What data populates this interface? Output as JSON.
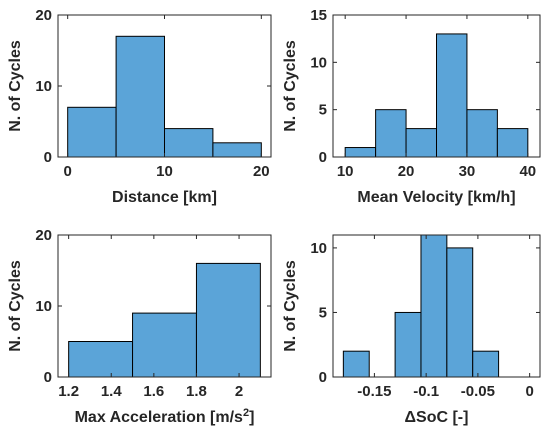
{
  "chart_data": [
    {
      "type": "bar",
      "xlabel": "Distance [km]",
      "ylabel": "N. of Cycles",
      "xlim": [
        -1,
        21
      ],
      "ylim": [
        0,
        20
      ],
      "xticks": [
        0,
        10,
        20
      ],
      "xtick_labels": [
        "0",
        "10",
        "20"
      ],
      "yticks": [
        0,
        10,
        20
      ],
      "ytick_labels": [
        "0",
        "10",
        "20"
      ],
      "bin_edges": [
        0,
        5,
        10,
        15,
        20
      ],
      "values": [
        7,
        17,
        4,
        2
      ],
      "bar_color": "#5ba4d8",
      "grid": false
    },
    {
      "type": "bar",
      "xlabel": "Mean Velocity [km/h]",
      "ylabel": "N. of Cycles",
      "xlim": [
        8,
        42
      ],
      "ylim": [
        0,
        15
      ],
      "xticks": [
        10,
        20,
        30,
        40
      ],
      "xtick_labels": [
        "10",
        "20",
        "30",
        "40"
      ],
      "yticks": [
        0,
        5,
        10,
        15
      ],
      "ytick_labels": [
        "0",
        "5",
        "10",
        "15"
      ],
      "bin_edges": [
        10,
        15,
        20,
        25,
        30,
        35,
        40
      ],
      "values": [
        1,
        5,
        3,
        13,
        5,
        3
      ],
      "bar_color": "#5ba4d8",
      "grid": false
    },
    {
      "type": "bar",
      "xlabel": "Max Acceleration [m/s",
      "xlabel_sup": "2",
      "xlabel_end": "]",
      "ylabel": "N. of Cycles",
      "xlim": [
        1.15,
        2.15
      ],
      "ylim": [
        0,
        20
      ],
      "xticks": [
        1.2,
        1.4,
        1.6,
        1.8,
        2.0
      ],
      "xtick_labels": [
        "1.2",
        "1.4",
        "1.6",
        "1.8",
        "2"
      ],
      "yticks": [
        0,
        10,
        20
      ],
      "ytick_labels": [
        "0",
        "10",
        "20"
      ],
      "bin_edges": [
        1.2,
        1.5,
        1.8,
        2.1
      ],
      "values": [
        5,
        9,
        16
      ],
      "bar_color": "#5ba4d8",
      "grid": false
    },
    {
      "type": "bar",
      "xlabel": "ΔSoC [-]",
      "ylabel": "N. of Cycles",
      "xlim": [
        -0.19,
        0.01
      ],
      "ylim": [
        0,
        11
      ],
      "xticks": [
        -0.15,
        -0.1,
        -0.05,
        0
      ],
      "xtick_labels": [
        "-0.15",
        "-0.1",
        "-0.05",
        "0"
      ],
      "yticks": [
        0,
        5,
        10
      ],
      "ytick_labels": [
        "0",
        "5",
        "10"
      ],
      "bin_edges": [
        -0.18,
        -0.155,
        -0.13,
        -0.105,
        -0.08,
        -0.055,
        -0.03,
        -0.005
      ],
      "values": [
        2,
        0,
        5,
        11,
        10,
        2,
        0
      ],
      "bar_color": "#5ba4d8",
      "grid": false
    }
  ]
}
